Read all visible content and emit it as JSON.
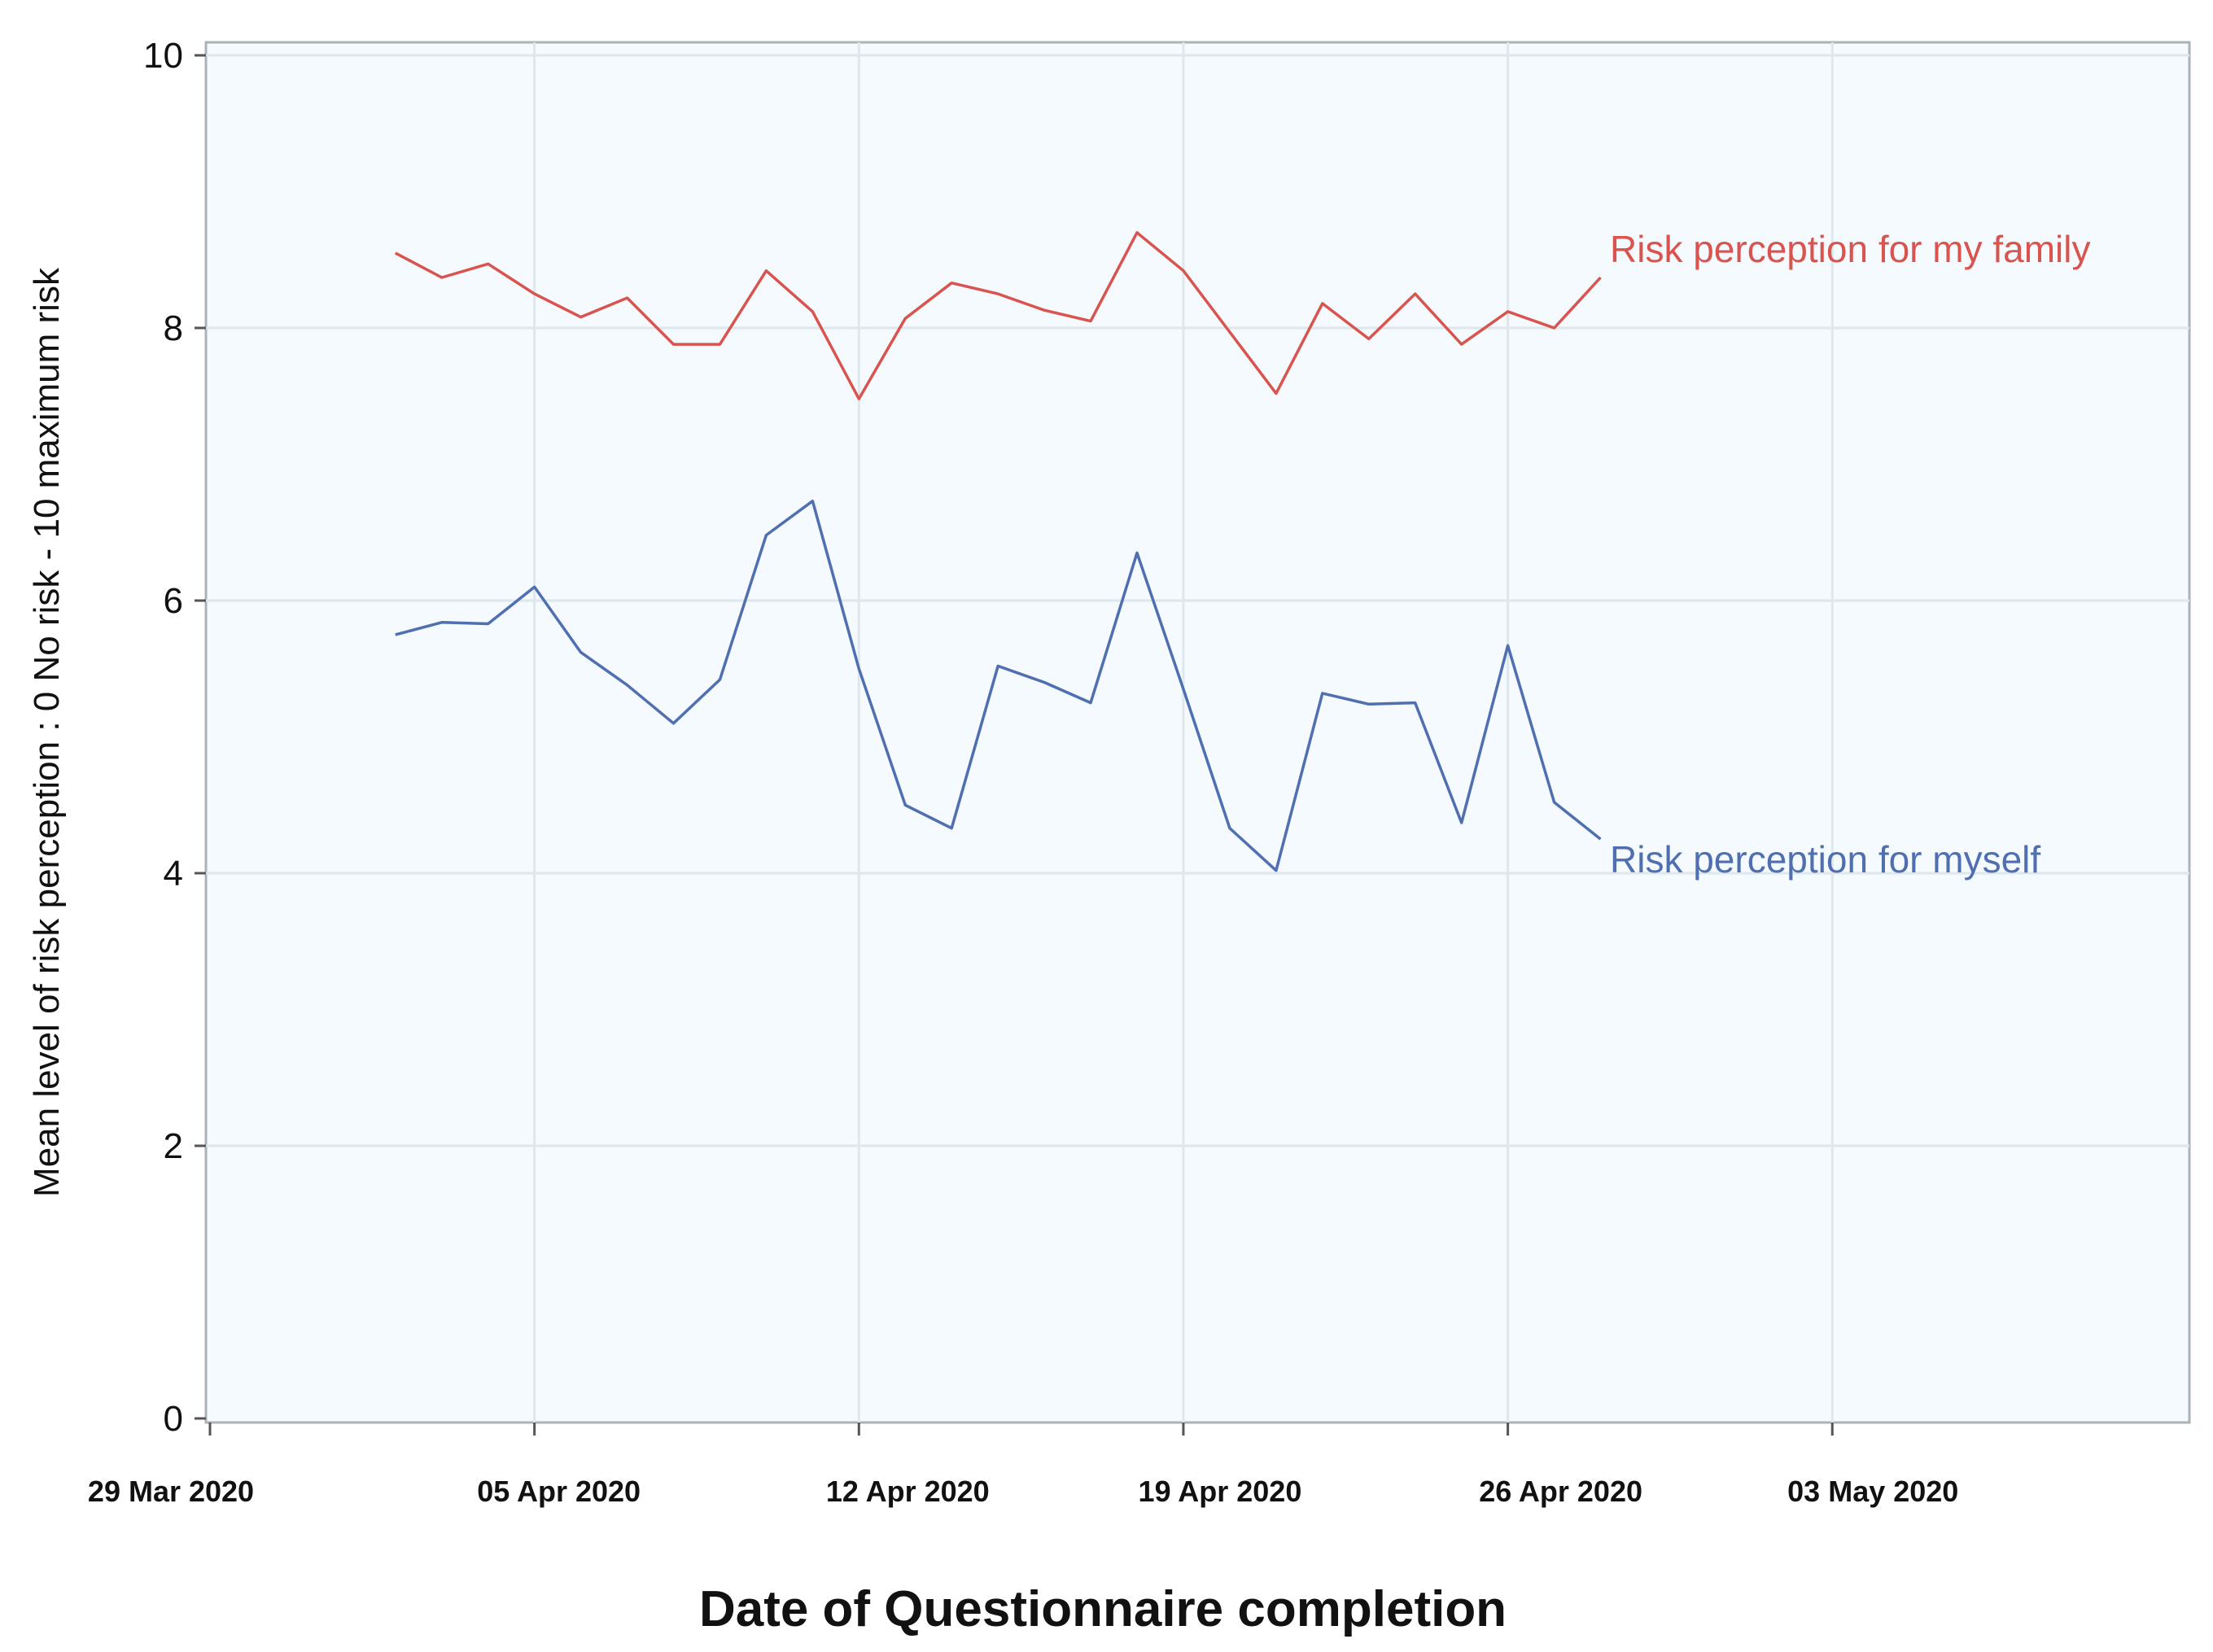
{
  "chart_data": {
    "type": "line",
    "xlabel": "Date of Questionnaire completion",
    "ylabel": "Mean level of risk perception : 0 No risk - 10 maximum risk",
    "ylim": [
      0,
      10
    ],
    "yticks": [
      "0",
      "2",
      "4",
      "6",
      "8",
      "10"
    ],
    "xlim": [
      "2020-03-29",
      "2020-05-09"
    ],
    "xticks": [
      {
        "date": "2020-03-29",
        "label": "29  Mar 2020"
      },
      {
        "date": "2020-04-05",
        "label": "05 Apr 2020"
      },
      {
        "date": "2020-04-12",
        "label": "12 Apr 2020"
      },
      {
        "date": "2020-04-19",
        "label": "19 Apr 2020"
      },
      {
        "date": "2020-04-26",
        "label": "26 Apr 2020"
      },
      {
        "date": "2020-05-03",
        "label": "03 May 2020"
      }
    ],
    "grid": true,
    "x": [
      "2020-04-02",
      "2020-04-03",
      "2020-04-04",
      "2020-04-05",
      "2020-04-06",
      "2020-04-07",
      "2020-04-08",
      "2020-04-09",
      "2020-04-10",
      "2020-04-11",
      "2020-04-12",
      "2020-04-13",
      "2020-04-14",
      "2020-04-15",
      "2020-04-16",
      "2020-04-17",
      "2020-04-18",
      "2020-04-19",
      "2020-04-20",
      "2020-04-21",
      "2020-04-22",
      "2020-04-23",
      "2020-04-24",
      "2020-04-25",
      "2020-04-26",
      "2020-04-27",
      "2020-04-28"
    ],
    "series": [
      {
        "name": "Risk perception for my family",
        "color": "#d9534f",
        "values": [
          8.55,
          8.37,
          8.47,
          8.25,
          8.08,
          8.22,
          7.88,
          7.88,
          8.42,
          8.12,
          7.48,
          8.07,
          8.33,
          8.25,
          8.13,
          8.05,
          8.7,
          8.42,
          7.97,
          7.52,
          8.18,
          7.92,
          8.25,
          7.88,
          8.12,
          8.0,
          8.37
        ]
      },
      {
        "name": "Risk perception for myself",
        "color": "#4f6fb0",
        "values": [
          5.75,
          5.84,
          5.83,
          6.1,
          5.62,
          5.38,
          5.1,
          5.42,
          6.48,
          6.73,
          5.5,
          4.5,
          4.33,
          5.52,
          5.4,
          5.25,
          6.35,
          5.35,
          4.33,
          4.02,
          5.32,
          5.24,
          5.25,
          4.37,
          5.67,
          4.52,
          4.25
        ]
      }
    ]
  }
}
